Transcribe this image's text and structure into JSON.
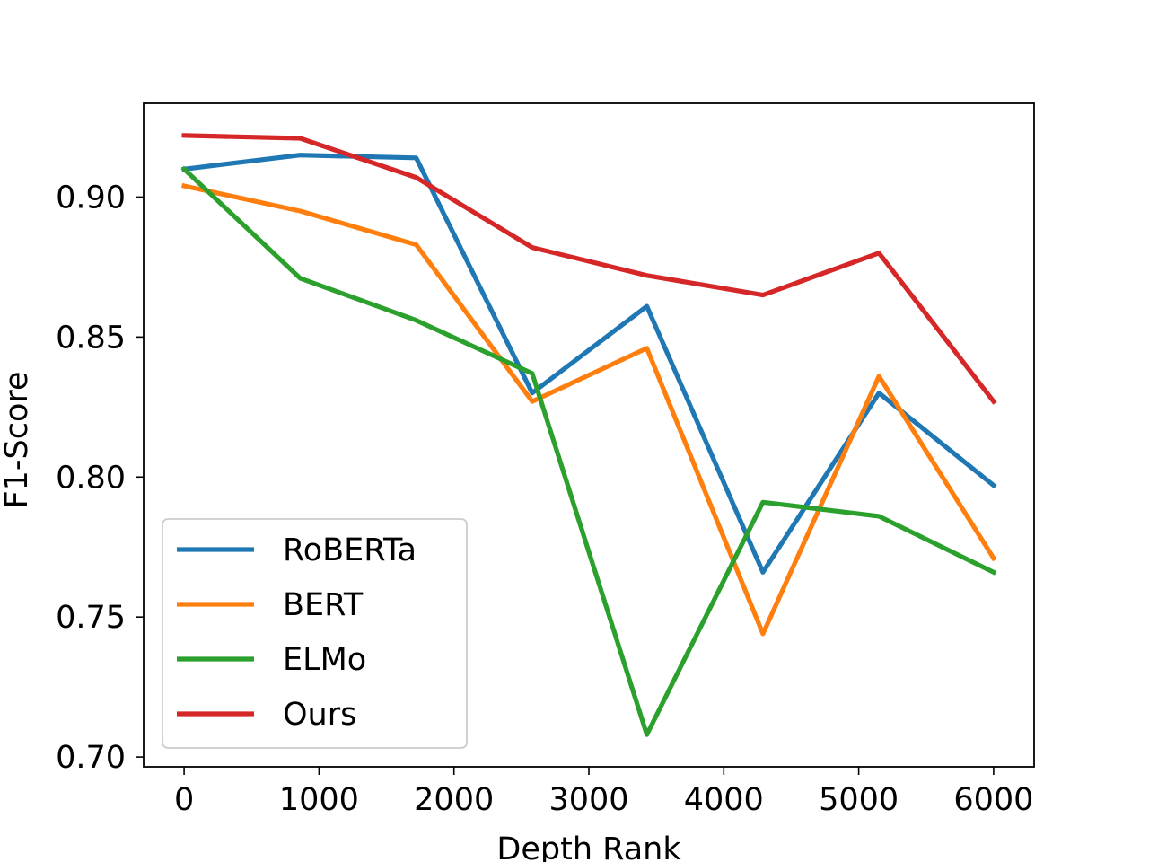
{
  "chart_data": {
    "type": "line",
    "title": "",
    "xlabel": "Depth Rank",
    "ylabel": "F1-Score",
    "xlim": [
      -300,
      6300
    ],
    "ylim": [
      0.6965,
      0.9335
    ],
    "xticks": [
      0,
      1000,
      2000,
      3000,
      4000,
      5000,
      6000
    ],
    "yticks": [
      0.7,
      0.75,
      0.8,
      0.85,
      0.9
    ],
    "xtick_labels": [
      "0",
      "1000",
      "2000",
      "3000",
      "4000",
      "5000",
      "6000"
    ],
    "ytick_labels": [
      "0.70",
      "0.75",
      "0.80",
      "0.85",
      "0.90"
    ],
    "grid": false,
    "legend_position": "lower-left",
    "x": [
      0,
      860,
      1720,
      2580,
      3430,
      4290,
      5150,
      6000
    ],
    "series": [
      {
        "name": "RoBERTa",
        "color": "#1f77b4",
        "values": [
          0.91,
          0.915,
          0.914,
          0.83,
          0.861,
          0.766,
          0.83,
          0.797
        ]
      },
      {
        "name": "BERT",
        "color": "#ff7f0e",
        "values": [
          0.904,
          0.895,
          0.883,
          0.827,
          0.846,
          0.744,
          0.836,
          0.771
        ]
      },
      {
        "name": "ELMo",
        "color": "#2ca02c",
        "values": [
          0.91,
          0.871,
          0.856,
          0.837,
          0.708,
          0.791,
          0.786,
          0.766
        ]
      },
      {
        "name": "Ours",
        "color": "#d62728",
        "values": [
          0.922,
          0.921,
          0.907,
          0.882,
          0.872,
          0.865,
          0.88,
          0.827
        ]
      }
    ]
  }
}
